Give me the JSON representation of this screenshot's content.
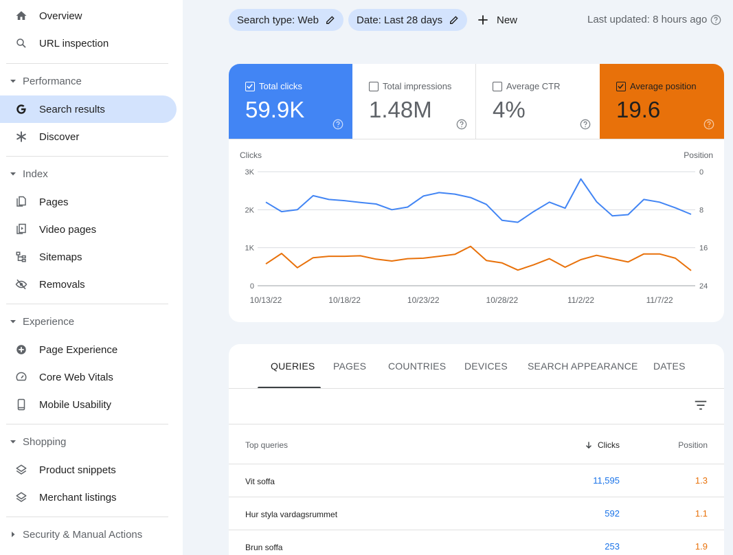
{
  "sidebar": {
    "top_items": [
      {
        "label": "Overview",
        "icon": "home-icon"
      },
      {
        "label": "URL inspection",
        "icon": "search-icon"
      }
    ],
    "sections": [
      {
        "label": "Performance",
        "items": [
          {
            "label": "Search results",
            "icon": "google-g-icon",
            "active": true
          },
          {
            "label": "Discover",
            "icon": "asterisk-icon"
          }
        ]
      },
      {
        "label": "Index",
        "items": [
          {
            "label": "Pages",
            "icon": "pages-icon"
          },
          {
            "label": "Video pages",
            "icon": "video-pages-icon"
          },
          {
            "label": "Sitemaps",
            "icon": "sitemap-icon"
          },
          {
            "label": "Removals",
            "icon": "eye-off-icon"
          }
        ]
      },
      {
        "label": "Experience",
        "items": [
          {
            "label": "Page Experience",
            "icon": "plus-circle-icon"
          },
          {
            "label": "Core Web Vitals",
            "icon": "gauge-icon"
          },
          {
            "label": "Mobile Usability",
            "icon": "phone-icon"
          }
        ]
      },
      {
        "label": "Shopping",
        "items": [
          {
            "label": "Product snippets",
            "icon": "layers-icon"
          },
          {
            "label": "Merchant listings",
            "icon": "layers-icon"
          }
        ]
      },
      {
        "label": "Security & Manual Actions",
        "items": []
      }
    ]
  },
  "header": {
    "chip_search_type": "Search type: Web",
    "chip_date": "Date: Last 28 days",
    "new_label": "New",
    "last_updated": "Last updated: 8 hours ago"
  },
  "metrics": [
    {
      "label": "Total clicks",
      "value": "59.9K",
      "checked": true,
      "color": "#4285f4"
    },
    {
      "label": "Total impressions",
      "value": "1.48M",
      "checked": false,
      "color": "#ffffff"
    },
    {
      "label": "Average CTR",
      "value": "4%",
      "checked": false,
      "color": "#ffffff"
    },
    {
      "label": "Average position",
      "value": "19.6",
      "checked": true,
      "color": "#e8710a"
    }
  ],
  "chart_data": {
    "type": "line",
    "left_axis_title": "Clicks",
    "right_axis_title": "Position",
    "left_ticks": [
      "3K",
      "2K",
      "1K",
      "0"
    ],
    "right_ticks": [
      "0",
      "8",
      "16",
      "24"
    ],
    "ylim_left": [
      0,
      3000
    ],
    "ylim_right": [
      0,
      24
    ],
    "right_axis_inverted": true,
    "x_ticks": [
      "10/13/22",
      "10/18/22",
      "10/23/22",
      "10/28/22",
      "11/2/22",
      "11/7/22"
    ],
    "x": [
      "10/13/22",
      "10/14/22",
      "10/15/22",
      "10/16/22",
      "10/17/22",
      "10/18/22",
      "10/19/22",
      "10/20/22",
      "10/21/22",
      "10/22/22",
      "10/23/22",
      "10/24/22",
      "10/25/22",
      "10/26/22",
      "10/27/22",
      "10/28/22",
      "10/29/22",
      "10/30/22",
      "10/31/22",
      "11/1/22",
      "11/2/22",
      "11/3/22",
      "11/4/22",
      "11/5/22",
      "11/6/22",
      "11/7/22",
      "11/8/22",
      "11/9/22"
    ],
    "series": [
      {
        "name": "Clicks",
        "color": "#4285f4",
        "axis": "left",
        "values": [
          2200,
          1950,
          2000,
          2370,
          2270,
          2240,
          2190,
          2150,
          2000,
          2070,
          2360,
          2450,
          2410,
          2320,
          2140,
          1720,
          1670,
          1950,
          2200,
          2040,
          2810,
          2210,
          1840,
          1870,
          2270,
          2200,
          2050,
          1880
        ]
      },
      {
        "name": "Position",
        "color": "#e8710a",
        "axis": "right",
        "values": [
          19.4,
          17.2,
          20.2,
          18.1,
          17.8,
          17.8,
          17.7,
          18.4,
          18.8,
          18.3,
          18.2,
          17.8,
          17.4,
          15.7,
          18.7,
          19.2,
          20.7,
          19.6,
          18.3,
          20.1,
          18.5,
          17.6,
          18.3,
          19.0,
          17.3,
          17.3,
          18.2,
          20.8
        ]
      }
    ]
  },
  "tabs": [
    "QUERIES",
    "PAGES",
    "COUNTRIES",
    "DEVICES",
    "SEARCH APPEARANCE",
    "DATES"
  ],
  "table": {
    "col_query": "Top queries",
    "col_clicks": "Clicks",
    "col_position": "Position",
    "rows": [
      {
        "query": "Vit soffa",
        "clicks": "11,595",
        "position": "1.3"
      },
      {
        "query": "Hur styla vardagsrummet",
        "clicks": "592",
        "position": "1.1"
      },
      {
        "query": "Brun soffa",
        "clicks": "253",
        "position": "1.9"
      }
    ]
  }
}
